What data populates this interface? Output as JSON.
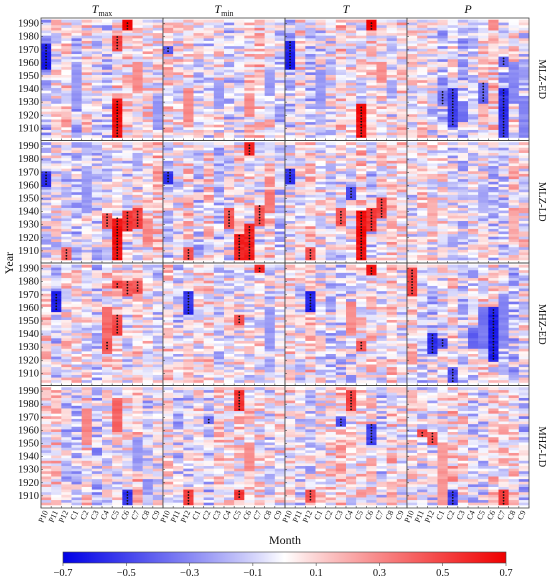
{
  "chart_data": {
    "type": "heatmap",
    "title": "",
    "xlabel": "Month",
    "ylabel": "Year",
    "columns": [
      {
        "main": "T",
        "sub": "max"
      },
      {
        "main": "T",
        "sub": "min"
      },
      {
        "main": "T",
        "sub": ""
      },
      {
        "main": "P",
        "sub": ""
      }
    ],
    "rows": [
      "MLZ-ED",
      "MLZ-LD",
      "MHZ-ED",
      "MHZ-LD"
    ],
    "month_labels": [
      "P10",
      "P11",
      "P12",
      "C1",
      "C2",
      "C3",
      "C4",
      "C5",
      "C6",
      "C7",
      "C8",
      "C9"
    ],
    "year_range": [
      1903,
      1992
    ],
    "year_ticks": [
      1910,
      1920,
      1930,
      1940,
      1950,
      1960,
      1970,
      1980,
      1990
    ],
    "colorbar": {
      "min": -0.7,
      "max": 0.7,
      "tick_values": [
        -0.7,
        -0.5,
        -0.3,
        -0.1,
        0.1,
        0.3,
        0.5,
        0.7
      ],
      "tick_labels": [
        "−0.7",
        "−0.5",
        "−0.3",
        "−0.1",
        "0.1",
        "0.3",
        "0.5",
        "0.7"
      ],
      "colors": [
        "#0000e6",
        "#ffffff",
        "#f00000"
      ]
    },
    "panels": [
      {
        "row": 0,
        "col": 0,
        "features": [
          {
            "x": 0,
            "y0": 1955,
            "y1": 1975,
            "v": -0.6,
            "sig": true
          },
          {
            "x": 3,
            "y0": 1925,
            "y1": 1960,
            "v": -0.25
          },
          {
            "x": 7,
            "y0": 1903,
            "y1": 1932,
            "v": 0.65,
            "sig": true
          },
          {
            "x": 7,
            "y0": 1970,
            "y1": 1980,
            "v": 0.5,
            "sig": true
          },
          {
            "x": 8,
            "y0": 1985,
            "y1": 1992,
            "v": 0.7,
            "sig": true
          },
          {
            "x": 9,
            "y0": 1940,
            "y1": 1960,
            "v": 0.3
          },
          {
            "x": 11,
            "y0": 1910,
            "y1": 1935,
            "v": -0.25
          }
        ]
      },
      {
        "row": 0,
        "col": 1,
        "features": [
          {
            "x": 0,
            "y0": 1968,
            "y1": 1973,
            "v": -0.45,
            "sig": true
          },
          {
            "x": 2,
            "y0": 1915,
            "y1": 1940,
            "v": 0.3
          },
          {
            "x": 5,
            "y0": 1925,
            "y1": 1945,
            "v": -0.25
          },
          {
            "x": 8,
            "y0": 1920,
            "y1": 1935,
            "v": 0.3
          },
          {
            "x": 10,
            "y0": 1935,
            "y1": 1955,
            "v": -0.25
          }
        ]
      },
      {
        "row": 0,
        "col": 2,
        "features": [
          {
            "x": 0,
            "y0": 1955,
            "y1": 1977,
            "v": -0.6,
            "sig": true
          },
          {
            "x": 3,
            "y0": 1925,
            "y1": 1955,
            "v": -0.25
          },
          {
            "x": 7,
            "y0": 1903,
            "y1": 1928,
            "v": 0.65,
            "sig": true
          },
          {
            "x": 8,
            "y0": 1985,
            "y1": 1992,
            "v": 0.7,
            "sig": true
          },
          {
            "x": 9,
            "y0": 1945,
            "y1": 1960,
            "v": 0.3
          }
        ]
      },
      {
        "row": 0,
        "col": 3,
        "features": [
          {
            "x": 3,
            "y0": 1928,
            "y1": 1938,
            "v": -0.35,
            "sig": true
          },
          {
            "x": 4,
            "y0": 1912,
            "y1": 1940,
            "v": -0.5,
            "sig": true
          },
          {
            "x": 5,
            "y0": 1915,
            "y1": 1930,
            "v": -0.35
          },
          {
            "x": 7,
            "y0": 1930,
            "y1": 1945,
            "v": -0.4,
            "sig": true
          },
          {
            "x": 9,
            "y0": 1903,
            "y1": 1940,
            "v": -0.55,
            "sig": true
          },
          {
            "x": 9,
            "y0": 1958,
            "y1": 1965,
            "v": -0.4,
            "sig": true
          },
          {
            "x": 10,
            "y0": 1930,
            "y1": 1960,
            "v": -0.3
          },
          {
            "x": 11,
            "y0": 1903,
            "y1": 1935,
            "v": -0.3
          }
        ]
      },
      {
        "row": 1,
        "col": 0,
        "features": [
          {
            "x": 0,
            "y0": 1960,
            "y1": 1970,
            "v": -0.55,
            "sig": true
          },
          {
            "x": 2,
            "y0": 1903,
            "y1": 1912,
            "v": 0.4,
            "sig": true
          },
          {
            "x": 4,
            "y0": 1940,
            "y1": 1970,
            "v": -0.25
          },
          {
            "x": 6,
            "y0": 1928,
            "y1": 1938,
            "v": 0.45,
            "sig": true
          },
          {
            "x": 7,
            "y0": 1903,
            "y1": 1935,
            "v": 0.65,
            "sig": true
          },
          {
            "x": 8,
            "y0": 1925,
            "y1": 1940,
            "v": 0.55,
            "sig": true
          },
          {
            "x": 9,
            "y0": 1928,
            "y1": 1942,
            "v": 0.5,
            "sig": true
          },
          {
            "x": 10,
            "y0": 1915,
            "y1": 1935,
            "v": 0.3
          }
        ]
      },
      {
        "row": 1,
        "col": 1,
        "features": [
          {
            "x": 0,
            "y0": 1962,
            "y1": 1970,
            "v": -0.55,
            "sig": true
          },
          {
            "x": 2,
            "y0": 1903,
            "y1": 1912,
            "v": 0.45,
            "sig": true
          },
          {
            "x": 6,
            "y0": 1928,
            "y1": 1942,
            "v": 0.45,
            "sig": true
          },
          {
            "x": 7,
            "y0": 1903,
            "y1": 1922,
            "v": 0.6,
            "sig": true
          },
          {
            "x": 8,
            "y0": 1903,
            "y1": 1930,
            "v": 0.6,
            "sig": true
          },
          {
            "x": 8,
            "y0": 1983,
            "y1": 1992,
            "v": 0.6,
            "sig": true
          },
          {
            "x": 9,
            "y0": 1930,
            "y1": 1945,
            "v": 0.45,
            "sig": true
          },
          {
            "x": 10,
            "y0": 1940,
            "y1": 1955,
            "v": 0.35
          }
        ]
      },
      {
        "row": 1,
        "col": 2,
        "features": [
          {
            "x": 0,
            "y0": 1962,
            "y1": 1972,
            "v": -0.55,
            "sig": true
          },
          {
            "x": 2,
            "y0": 1903,
            "y1": 1912,
            "v": 0.45,
            "sig": true
          },
          {
            "x": 5,
            "y0": 1930,
            "y1": 1942,
            "v": 0.45,
            "sig": true
          },
          {
            "x": 7,
            "y0": 1903,
            "y1": 1940,
            "v": 0.65,
            "sig": true
          },
          {
            "x": 8,
            "y0": 1925,
            "y1": 1942,
            "v": 0.55,
            "sig": true
          },
          {
            "x": 9,
            "y0": 1935,
            "y1": 1950,
            "v": 0.5,
            "sig": true
          },
          {
            "x": 6,
            "y0": 1950,
            "y1": 1958,
            "v": -0.45,
            "sig": true
          }
        ]
      },
      {
        "row": 1,
        "col": 3,
        "features": [
          {
            "x": 2,
            "y0": 1930,
            "y1": 1950,
            "v": 0.2
          },
          {
            "x": 7,
            "y0": 1940,
            "y1": 1960,
            "v": -0.2
          },
          {
            "x": 10,
            "y0": 1920,
            "y1": 1940,
            "v": 0.2
          }
        ]
      },
      {
        "row": 2,
        "col": 0,
        "features": [
          {
            "x": 1,
            "y0": 1958,
            "y1": 1972,
            "v": -0.6,
            "sig": true
          },
          {
            "x": 6,
            "y0": 1925,
            "y1": 1960,
            "v": 0.4
          },
          {
            "x": 7,
            "y0": 1940,
            "y1": 1955,
            "v": 0.5,
            "sig": true
          },
          {
            "x": 7,
            "y0": 1975,
            "y1": 1980,
            "v": 0.5,
            "sig": true
          },
          {
            "x": 8,
            "y0": 1970,
            "y1": 1980,
            "v": 0.45,
            "sig": true
          },
          {
            "x": 9,
            "y0": 1972,
            "y1": 1980,
            "v": 0.45,
            "sig": true
          },
          {
            "x": 6,
            "y0": 1928,
            "y1": 1934,
            "v": 0.45,
            "sig": true
          }
        ]
      },
      {
        "row": 2,
        "col": 1,
        "features": [
          {
            "x": 2,
            "y0": 1955,
            "y1": 1972,
            "v": -0.55,
            "sig": true
          },
          {
            "x": 7,
            "y0": 1948,
            "y1": 1955,
            "v": 0.5,
            "sig": true
          },
          {
            "x": 9,
            "y0": 1987,
            "y1": 1992,
            "v": 0.6,
            "sig": true
          },
          {
            "x": 10,
            "y0": 1930,
            "y1": 1960,
            "v": -0.25
          }
        ]
      },
      {
        "row": 2,
        "col": 2,
        "features": [
          {
            "x": 2,
            "y0": 1958,
            "y1": 1972,
            "v": -0.6,
            "sig": true
          },
          {
            "x": 7,
            "y0": 1928,
            "y1": 1934,
            "v": 0.45,
            "sig": true
          },
          {
            "x": 8,
            "y0": 1985,
            "y1": 1992,
            "v": 0.65,
            "sig": true
          },
          {
            "x": 6,
            "y0": 1940,
            "y1": 1965,
            "v": 0.3
          }
        ]
      },
      {
        "row": 2,
        "col": 3,
        "features": [
          {
            "x": 0,
            "y0": 1970,
            "y1": 1990,
            "v": 0.5,
            "sig": true
          },
          {
            "x": 2,
            "y0": 1925,
            "y1": 1940,
            "v": -0.55,
            "sig": true
          },
          {
            "x": 3,
            "y0": 1930,
            "y1": 1936,
            "v": -0.45,
            "sig": true
          },
          {
            "x": 4,
            "y0": 1903,
            "y1": 1915,
            "v": -0.45,
            "sig": true
          },
          {
            "x": 6,
            "y0": 1930,
            "y1": 1945,
            "v": -0.4
          },
          {
            "x": 7,
            "y0": 1930,
            "y1": 1960,
            "v": -0.35
          },
          {
            "x": 8,
            "y0": 1920,
            "y1": 1960,
            "v": -0.6,
            "sig": true
          },
          {
            "x": 9,
            "y0": 1930,
            "y1": 1970,
            "v": -0.3
          }
        ]
      },
      {
        "row": 3,
        "col": 0,
        "features": [
          {
            "x": 4,
            "y0": 1950,
            "y1": 1975,
            "v": 0.3
          },
          {
            "x": 7,
            "y0": 1960,
            "y1": 1985,
            "v": 0.4
          },
          {
            "x": 8,
            "y0": 1903,
            "y1": 1915,
            "v": -0.55,
            "sig": true
          },
          {
            "x": 9,
            "y0": 1930,
            "y1": 1955,
            "v": -0.25
          }
        ]
      },
      {
        "row": 3,
        "col": 1,
        "features": [
          {
            "x": 2,
            "y0": 1903,
            "y1": 1915,
            "v": 0.5,
            "sig": true
          },
          {
            "x": 4,
            "y0": 1965,
            "y1": 1970,
            "v": -0.4,
            "sig": true
          },
          {
            "x": 7,
            "y0": 1975,
            "y1": 1990,
            "v": 0.55,
            "sig": true
          },
          {
            "x": 7,
            "y0": 1908,
            "y1": 1914,
            "v": 0.55,
            "sig": true
          },
          {
            "x": 8,
            "y0": 1930,
            "y1": 1950,
            "v": 0.3
          }
        ]
      },
      {
        "row": 3,
        "col": 2,
        "features": [
          {
            "x": 2,
            "y0": 1906,
            "y1": 1914,
            "v": 0.45,
            "sig": true
          },
          {
            "x": 5,
            "y0": 1963,
            "y1": 1970,
            "v": -0.45,
            "sig": true
          },
          {
            "x": 6,
            "y0": 1975,
            "y1": 1990,
            "v": 0.5,
            "sig": true
          },
          {
            "x": 8,
            "y0": 1950,
            "y1": 1965,
            "v": -0.5,
            "sig": true
          }
        ]
      },
      {
        "row": 3,
        "col": 3,
        "features": [
          {
            "x": 1,
            "y0": 1955,
            "y1": 1960,
            "v": 0.5,
            "sig": true
          },
          {
            "x": 2,
            "y0": 1950,
            "y1": 1958,
            "v": 0.45,
            "sig": true
          },
          {
            "x": 3,
            "y0": 1903,
            "y1": 1950,
            "v": 0.25
          },
          {
            "x": 4,
            "y0": 1903,
            "y1": 1915,
            "v": -0.5,
            "sig": true
          },
          {
            "x": 9,
            "y0": 1903,
            "y1": 1915,
            "v": 0.5,
            "sig": true
          }
        ]
      }
    ]
  }
}
